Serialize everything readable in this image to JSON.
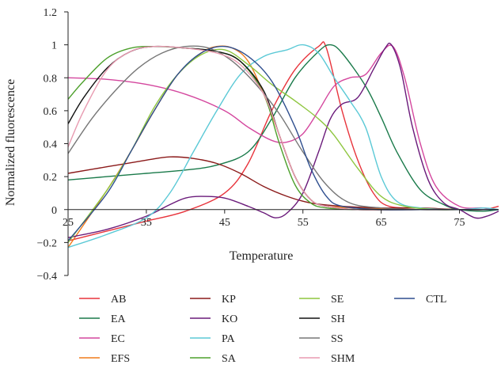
{
  "chart_data": {
    "type": "line",
    "title": "",
    "xlabel": "Temperature",
    "ylabel": "Normalized fluorescence",
    "xlim": [
      25,
      80
    ],
    "ylim": [
      -0.4,
      1.2
    ],
    "xticks": [
      "25",
      "35",
      "45",
      "55",
      "65",
      "75"
    ],
    "yticks": [
      "−0.4",
      "−0.2",
      "0",
      "0.2",
      "0.4",
      "0.6",
      "0.8",
      "1",
      "1.2"
    ],
    "grid": false,
    "legend_position": "bottom",
    "series": [
      {
        "name": "AB",
        "color": "#e8343c",
        "points": [
          [
            25,
            -0.19
          ],
          [
            30,
            -0.13
          ],
          [
            35,
            -0.07
          ],
          [
            40,
            -0.01
          ],
          [
            45,
            0.1
          ],
          [
            48,
            0.28
          ],
          [
            51,
            0.6
          ],
          [
            54,
            0.85
          ],
          [
            57,
            0.99
          ],
          [
            58,
            0.98
          ],
          [
            60,
            0.6
          ],
          [
            62,
            0.3
          ],
          [
            64,
            0.1
          ],
          [
            66,
            0.02
          ],
          [
            70,
            0.01
          ],
          [
            75,
            0.0
          ],
          [
            78,
            0.0
          ],
          [
            80,
            0.02
          ]
        ]
      },
      {
        "name": "EA",
        "color": "#1a7a4a",
        "points": [
          [
            25,
            0.18
          ],
          [
            30,
            0.2
          ],
          [
            35,
            0.22
          ],
          [
            40,
            0.24
          ],
          [
            44,
            0.27
          ],
          [
            48,
            0.35
          ],
          [
            51,
            0.55
          ],
          [
            54,
            0.8
          ],
          [
            57,
            0.96
          ],
          [
            58.5,
            1.0
          ],
          [
            60,
            0.95
          ],
          [
            63,
            0.75
          ],
          [
            65,
            0.56
          ],
          [
            67,
            0.35
          ],
          [
            70,
            0.12
          ],
          [
            73,
            0.03
          ],
          [
            75,
            0.0
          ],
          [
            78,
            -0.01
          ],
          [
            80,
            0.0
          ]
        ]
      },
      {
        "name": "EC",
        "color": "#d4479e",
        "points": [
          [
            25,
            0.8
          ],
          [
            30,
            0.79
          ],
          [
            35,
            0.76
          ],
          [
            40,
            0.7
          ],
          [
            45,
            0.6
          ],
          [
            48,
            0.5
          ],
          [
            51,
            0.42
          ],
          [
            53,
            0.41
          ],
          [
            55,
            0.46
          ],
          [
            57,
            0.6
          ],
          [
            59,
            0.75
          ],
          [
            61,
            0.8
          ],
          [
            63,
            0.82
          ],
          [
            65,
            0.95
          ],
          [
            66.5,
            0.99
          ],
          [
            68,
            0.8
          ],
          [
            70,
            0.4
          ],
          [
            72,
            0.14
          ],
          [
            75,
            0.02
          ],
          [
            78,
            0.01
          ],
          [
            80,
            0.0
          ]
        ]
      },
      {
        "name": "EFS",
        "color": "#f07c1a",
        "points": [
          [
            25,
            -0.23
          ],
          [
            30,
            0.12
          ],
          [
            33,
            0.35
          ],
          [
            36,
            0.6
          ],
          [
            39,
            0.82
          ],
          [
            42,
            0.95
          ],
          [
            44,
            0.99
          ],
          [
            46,
            0.98
          ],
          [
            48,
            0.9
          ],
          [
            50,
            0.7
          ],
          [
            52,
            0.45
          ],
          [
            54,
            0.2
          ],
          [
            56,
            0.06
          ],
          [
            58,
            0.02
          ],
          [
            62,
            0.01
          ],
          [
            70,
            0.0
          ],
          [
            75,
            0.0
          ],
          [
            80,
            0.0
          ]
        ]
      },
      {
        "name": "KP",
        "color": "#8b1a1a",
        "points": [
          [
            25,
            0.22
          ],
          [
            30,
            0.26
          ],
          [
            35,
            0.3
          ],
          [
            38,
            0.32
          ],
          [
            41,
            0.31
          ],
          [
            44,
            0.28
          ],
          [
            47,
            0.22
          ],
          [
            50,
            0.14
          ],
          [
            53,
            0.08
          ],
          [
            56,
            0.04
          ],
          [
            60,
            0.02
          ],
          [
            65,
            0.01
          ],
          [
            70,
            0.01
          ],
          [
            75,
            0.0
          ],
          [
            80,
            0.0
          ]
        ]
      },
      {
        "name": "KO",
        "color": "#6a1a7a",
        "points": [
          [
            25,
            -0.17
          ],
          [
            30,
            -0.12
          ],
          [
            35,
            -0.04
          ],
          [
            38,
            0.03
          ],
          [
            40,
            0.07
          ],
          [
            42,
            0.08
          ],
          [
            45,
            0.07
          ],
          [
            48,
            0.02
          ],
          [
            50,
            -0.02
          ],
          [
            51.5,
            -0.05
          ],
          [
            53,
            -0.02
          ],
          [
            55,
            0.1
          ],
          [
            57,
            0.35
          ],
          [
            58.5,
            0.55
          ],
          [
            60,
            0.64
          ],
          [
            62,
            0.68
          ],
          [
            64,
            0.85
          ],
          [
            65.5,
            0.98
          ],
          [
            66.3,
            1.0
          ],
          [
            67.5,
            0.85
          ],
          [
            69,
            0.5
          ],
          [
            71,
            0.18
          ],
          [
            73,
            0.04
          ],
          [
            75,
            0.0
          ],
          [
            77,
            -0.05
          ],
          [
            78.5,
            -0.04
          ],
          [
            80,
            -0.01
          ]
        ]
      },
      {
        "name": "PA",
        "color": "#5bc9d6",
        "points": [
          [
            25,
            -0.23
          ],
          [
            30,
            -0.15
          ],
          [
            35,
            -0.05
          ],
          [
            38,
            0.1
          ],
          [
            41,
            0.35
          ],
          [
            44,
            0.6
          ],
          [
            47,
            0.82
          ],
          [
            50,
            0.93
          ],
          [
            53,
            0.97
          ],
          [
            55,
            1.0
          ],
          [
            57,
            0.95
          ],
          [
            59,
            0.8
          ],
          [
            61,
            0.66
          ],
          [
            63,
            0.5
          ],
          [
            65,
            0.2
          ],
          [
            67,
            0.05
          ],
          [
            70,
            0.01
          ],
          [
            75,
            0.0
          ],
          [
            78,
            0.01
          ],
          [
            80,
            0.0
          ]
        ]
      },
      {
        "name": "SA",
        "color": "#4da02c",
        "points": [
          [
            25,
            0.67
          ],
          [
            27,
            0.78
          ],
          [
            30,
            0.92
          ],
          [
            33,
            0.98
          ],
          [
            36,
            0.99
          ],
          [
            40,
            0.98
          ],
          [
            44,
            0.96
          ],
          [
            47,
            0.9
          ],
          [
            50,
            0.7
          ],
          [
            52,
            0.4
          ],
          [
            54,
            0.15
          ],
          [
            56,
            0.04
          ],
          [
            58,
            0.01
          ],
          [
            62,
            0.0
          ],
          [
            70,
            0.0
          ],
          [
            75,
            0.0
          ],
          [
            80,
            0.0
          ]
        ]
      },
      {
        "name": "SE",
        "color": "#8ec63f",
        "points": [
          [
            25,
            -0.2
          ],
          [
            30,
            0.12
          ],
          [
            33,
            0.35
          ],
          [
            36,
            0.62
          ],
          [
            39,
            0.82
          ],
          [
            42,
            0.94
          ],
          [
            45,
            0.97
          ],
          [
            48,
            0.88
          ],
          [
            51,
            0.76
          ],
          [
            54,
            0.66
          ],
          [
            57,
            0.55
          ],
          [
            59,
            0.45
          ],
          [
            62,
            0.25
          ],
          [
            65,
            0.08
          ],
          [
            68,
            0.02
          ],
          [
            72,
            0.0
          ],
          [
            75,
            0.0
          ],
          [
            80,
            0.0
          ]
        ]
      },
      {
        "name": "SH",
        "color": "#111111",
        "points": [
          [
            25,
            0.52
          ],
          [
            27,
            0.68
          ],
          [
            30,
            0.86
          ],
          [
            33,
            0.96
          ],
          [
            36,
            0.99
          ],
          [
            40,
            0.98
          ],
          [
            44,
            0.96
          ],
          [
            47,
            0.9
          ],
          [
            50,
            0.72
          ],
          [
            52,
            0.45
          ],
          [
            54,
            0.2
          ],
          [
            56,
            0.06
          ],
          [
            58,
            0.02
          ],
          [
            62,
            0.0
          ],
          [
            70,
            0.0
          ],
          [
            75,
            0.0
          ],
          [
            80,
            0.0
          ]
        ]
      },
      {
        "name": "SS",
        "color": "#777777",
        "points": [
          [
            25,
            0.34
          ],
          [
            28,
            0.55
          ],
          [
            31,
            0.72
          ],
          [
            34,
            0.86
          ],
          [
            37,
            0.95
          ],
          [
            40,
            0.99
          ],
          [
            43,
            0.98
          ],
          [
            46,
            0.9
          ],
          [
            49,
            0.76
          ],
          [
            52,
            0.58
          ],
          [
            55,
            0.35
          ],
          [
            58,
            0.15
          ],
          [
            61,
            0.04
          ],
          [
            65,
            0.01
          ],
          [
            70,
            0.0
          ],
          [
            75,
            0.0
          ],
          [
            80,
            0.0
          ]
        ]
      },
      {
        "name": "SHM",
        "color": "#e89ab0",
        "points": [
          [
            25,
            0.38
          ],
          [
            27,
            0.6
          ],
          [
            30,
            0.85
          ],
          [
            33,
            0.96
          ],
          [
            36,
            0.99
          ],
          [
            40,
            0.98
          ],
          [
            44,
            0.95
          ],
          [
            47,
            0.88
          ],
          [
            50,
            0.7
          ],
          [
            52,
            0.45
          ],
          [
            54,
            0.2
          ],
          [
            56,
            0.06
          ],
          [
            58,
            0.02
          ],
          [
            62,
            0.0
          ],
          [
            70,
            0.0
          ],
          [
            75,
            0.0
          ],
          [
            80,
            0.0
          ]
        ]
      },
      {
        "name": "CTL",
        "color": "#2f4f8f",
        "points": [
          [
            25,
            -0.19
          ],
          [
            30,
            0.1
          ],
          [
            33,
            0.35
          ],
          [
            36,
            0.6
          ],
          [
            39,
            0.82
          ],
          [
            42,
            0.95
          ],
          [
            45,
            0.99
          ],
          [
            48,
            0.93
          ],
          [
            51,
            0.78
          ],
          [
            54,
            0.5
          ],
          [
            56,
            0.25
          ],
          [
            58,
            0.08
          ],
          [
            60,
            0.02
          ],
          [
            65,
            0.0
          ],
          [
            70,
            0.0
          ],
          [
            75,
            0.0
          ],
          [
            80,
            0.0
          ]
        ]
      }
    ]
  }
}
